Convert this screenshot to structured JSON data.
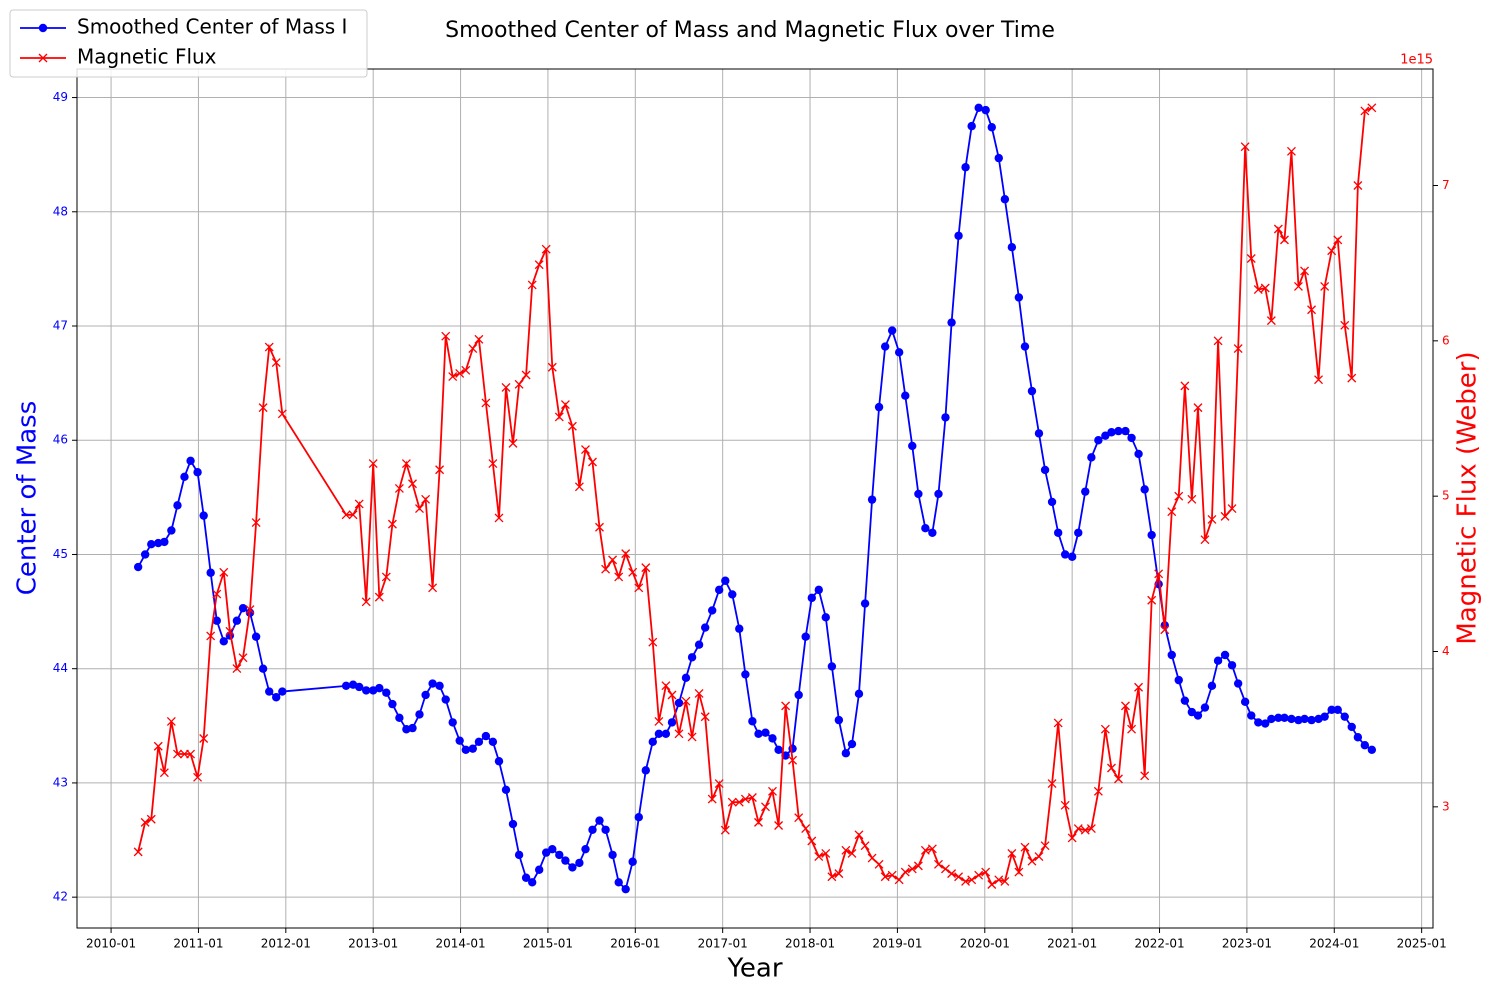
{
  "chart_data": {
    "type": "line",
    "title": "Smoothed Center of Mass and Magnetic Flux over Time",
    "x_label": "Year",
    "y_label": "Center of Mass",
    "y2_label": "Magnetic Flux (Weber)",
    "y2_offset_label": "1e15",
    "grid": true,
    "legend_position": "upper-left",
    "x": [
      2010.31,
      2010.39,
      2010.46,
      2010.54,
      2010.61,
      2010.69,
      2010.76,
      2010.84,
      2010.91,
      2010.99,
      2011.06,
      2011.14,
      2011.21,
      2011.29,
      2011.36,
      2011.44,
      2011.51,
      2011.59,
      2011.66,
      2011.74,
      2011.81,
      2011.89,
      2011.96,
      2012.69,
      2012.77,
      2012.84,
      2012.92,
      2013.0,
      2013.07,
      2013.15,
      2013.22,
      2013.3,
      2013.38,
      2013.45,
      2013.53,
      2013.6,
      2013.68,
      2013.76,
      2013.83,
      2013.91,
      2013.99,
      2014.06,
      2014.14,
      2014.21,
      2014.29,
      2014.37,
      2014.44,
      2014.52,
      2014.6,
      2014.67,
      2014.75,
      2014.82,
      2014.9,
      2014.98,
      2015.05,
      2015.13,
      2015.2,
      2015.28,
      2015.36,
      2015.43,
      2015.51,
      2015.59,
      2015.66,
      2015.74,
      2015.81,
      2015.89,
      2015.97,
      2016.04,
      2016.12,
      2016.2,
      2016.27,
      2016.35,
      2016.42,
      2016.5,
      2016.58,
      2016.65,
      2016.73,
      2016.8,
      2016.88,
      2016.96,
      2017.03,
      2017.11,
      2017.19,
      2017.26,
      2017.34,
      2017.41,
      2017.49,
      2017.57,
      2017.64,
      2017.72,
      2017.8,
      2017.87,
      2017.95,
      2018.02,
      2018.1,
      2018.18,
      2018.25,
      2018.33,
      2018.41,
      2018.48,
      2018.56,
      2018.63,
      2018.71,
      2018.79,
      2018.86,
      2018.94,
      2019.02,
      2019.09,
      2019.17,
      2019.24,
      2019.32,
      2019.4,
      2019.47,
      2019.55,
      2019.62,
      2019.7,
      2019.78,
      2019.85,
      2019.93,
      2020.01,
      2020.08,
      2020.16,
      2020.23,
      2020.31,
      2020.39,
      2020.46,
      2020.54,
      2020.62,
      2020.69,
      2020.77,
      2020.84,
      2020.92,
      2021.0,
      2021.07,
      2021.15,
      2021.22,
      2021.3,
      2021.38,
      2021.45,
      2021.53,
      2021.61,
      2021.68,
      2021.76,
      2021.83,
      2021.91,
      2021.99,
      2022.06,
      2022.14,
      2022.22,
      2022.29,
      2022.37,
      2022.44,
      2022.52,
      2022.6,
      2022.67,
      2022.75,
      2022.83,
      2022.9,
      2022.98,
      2023.05,
      2023.13,
      2023.21,
      2023.28,
      2023.36,
      2023.43,
      2023.51,
      2023.59,
      2023.66,
      2023.74,
      2023.82,
      2023.89,
      2023.97,
      2024.04,
      2024.12,
      2024.2,
      2024.27,
      2024.35,
      2024.43
    ],
    "xlim": [
      2009.61,
      2025.13
    ],
    "xticks": [
      {
        "value": 2010,
        "label": "2010-01"
      },
      {
        "value": 2011,
        "label": "2011-01"
      },
      {
        "value": 2012,
        "label": "2012-01"
      },
      {
        "value": 2013,
        "label": "2013-01"
      },
      {
        "value": 2014,
        "label": "2014-01"
      },
      {
        "value": 2015,
        "label": "2015-01"
      },
      {
        "value": 2016,
        "label": "2016-01"
      },
      {
        "value": 2017,
        "label": "2017-01"
      },
      {
        "value": 2018,
        "label": "2018-01"
      },
      {
        "value": 2019,
        "label": "2019-01"
      },
      {
        "value": 2020,
        "label": "2020-01"
      },
      {
        "value": 2021,
        "label": "2021-01"
      },
      {
        "value": 2022,
        "label": "2022-01"
      },
      {
        "value": 2023,
        "label": "2023-01"
      },
      {
        "value": 2024,
        "label": "2024-01"
      },
      {
        "value": 2025,
        "label": "2025-01"
      }
    ],
    "ylim": [
      41.73,
      49.25
    ],
    "yticks": [
      42,
      43,
      44,
      45,
      46,
      47,
      48,
      49
    ],
    "y2lim": [
      2.22,
      7.75
    ],
    "y2ticks": [
      3,
      4,
      5,
      6,
      7
    ],
    "series": [
      {
        "name": "Smoothed Center of Mass I",
        "color": "#0000ff",
        "marker": "o",
        "axis": "y",
        "values": [
          44.89,
          45.0,
          45.09,
          45.1,
          45.11,
          45.21,
          45.43,
          45.68,
          45.82,
          45.72,
          45.34,
          44.84,
          44.42,
          44.24,
          44.29,
          44.42,
          44.53,
          44.49,
          44.28,
          44.0,
          43.8,
          43.75,
          43.8,
          43.85,
          43.86,
          43.84,
          43.81,
          43.81,
          43.83,
          43.79,
          43.69,
          43.57,
          43.47,
          43.48,
          43.6,
          43.77,
          43.87,
          43.85,
          43.73,
          43.53,
          43.37,
          43.29,
          43.3,
          43.36,
          43.41,
          43.36,
          43.19,
          42.94,
          42.64,
          42.37,
          42.17,
          42.13,
          42.24,
          42.39,
          42.42,
          42.37,
          42.32,
          42.26,
          42.3,
          42.42,
          42.59,
          42.67,
          42.59,
          42.37,
          42.13,
          42.07,
          42.31,
          42.7,
          43.11,
          43.36,
          43.43,
          43.43,
          43.53,
          43.7,
          43.92,
          44.1,
          44.21,
          44.36,
          44.51,
          44.69,
          44.77,
          44.65,
          44.35,
          43.95,
          43.54,
          43.43,
          43.44,
          43.39,
          43.29,
          43.24,
          43.3,
          43.77,
          44.28,
          44.62,
          44.69,
          44.45,
          44.02,
          43.55,
          43.26,
          43.34,
          43.78,
          44.57,
          45.48,
          46.29,
          46.82,
          46.96,
          46.77,
          46.39,
          45.95,
          45.53,
          45.23,
          45.19,
          45.53,
          46.2,
          47.03,
          47.79,
          48.39,
          48.75,
          48.91,
          48.89,
          48.74,
          48.47,
          48.11,
          47.69,
          47.25,
          46.82,
          46.43,
          46.06,
          45.74,
          45.46,
          45.19,
          45.0,
          44.98,
          45.19,
          45.55,
          45.85,
          46.0,
          46.04,
          46.07,
          46.08,
          46.08,
          46.02,
          45.88,
          45.57,
          45.17,
          44.74,
          44.38,
          44.12,
          43.9,
          43.72,
          43.62,
          43.59,
          43.66,
          43.85,
          44.07,
          44.12,
          44.03,
          43.87,
          43.71,
          43.59,
          43.53,
          43.52,
          43.56,
          43.57,
          43.57,
          43.56,
          43.55,
          43.56,
          43.55,
          43.56,
          43.58,
          43.64,
          43.64,
          43.58,
          43.49,
          43.4,
          43.33,
          43.29
        ]
      },
      {
        "name": "Magnetic Flux",
        "color": "#ff0000",
        "marker": "x",
        "axis": "y2",
        "values": [
          2.71,
          2.9,
          2.92,
          3.39,
          3.22,
          3.55,
          3.34,
          3.34,
          3.34,
          3.19,
          3.44,
          4.1,
          4.37,
          4.51,
          4.13,
          3.89,
          3.96,
          4.27,
          4.83,
          5.57,
          5.96,
          5.86,
          5.53,
          4.88,
          4.88,
          4.95,
          4.32,
          5.21,
          4.35,
          4.48,
          4.82,
          5.05,
          5.21,
          5.08,
          4.92,
          4.98,
          4.41,
          5.17,
          6.03,
          5.77,
          5.79,
          5.81,
          5.95,
          6.01,
          5.6,
          5.21,
          4.86,
          5.7,
          5.34,
          5.72,
          5.78,
          6.36,
          6.49,
          6.59,
          5.83,
          5.51,
          5.59,
          5.45,
          5.06,
          5.3,
          5.22,
          4.8,
          4.53,
          4.59,
          4.48,
          4.63,
          4.51,
          4.41,
          4.54,
          4.06,
          3.55,
          3.78,
          3.72,
          3.47,
          3.68,
          3.45,
          3.73,
          3.58,
          3.05,
          3.15,
          2.85,
          3.03,
          3.03,
          3.05,
          3.06,
          2.9,
          3.0,
          3.1,
          2.88,
          3.65,
          3.3,
          2.93,
          2.86,
          2.78,
          2.68,
          2.7,
          2.55,
          2.57,
          2.72,
          2.7,
          2.82,
          2.75,
          2.67,
          2.63,
          2.55,
          2.56,
          2.53,
          2.58,
          2.6,
          2.62,
          2.72,
          2.73,
          2.63,
          2.6,
          2.57,
          2.55,
          2.52,
          2.53,
          2.56,
          2.58,
          2.5,
          2.53,
          2.52,
          2.7,
          2.58,
          2.74,
          2.65,
          2.68,
          2.75,
          3.15,
          3.54,
          3.01,
          2.8,
          2.86,
          2.85,
          2.86,
          3.1,
          3.5,
          3.25,
          3.18,
          3.65,
          3.5,
          3.77,
          3.2,
          4.33,
          4.5,
          4.14,
          4.9,
          5.0,
          5.71,
          4.98,
          5.57,
          4.72,
          4.85,
          6.0,
          4.87,
          4.92,
          5.95,
          7.25,
          6.53,
          6.33,
          6.34,
          6.13,
          6.72,
          6.65,
          7.22,
          6.35,
          6.45,
          6.2,
          5.75,
          6.35,
          6.58,
          6.65,
          6.1,
          5.76,
          7.0,
          7.48,
          7.5
        ]
      }
    ]
  }
}
